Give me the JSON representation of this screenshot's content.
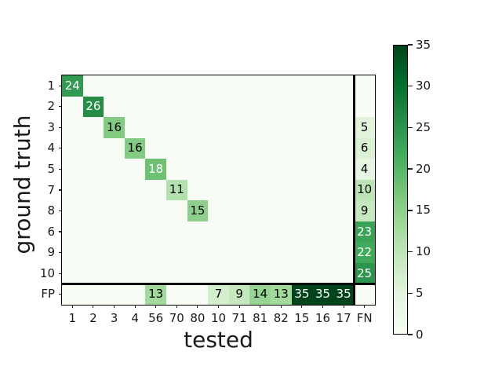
{
  "chart_data": {
    "type": "heatmap",
    "title": "",
    "xlabel": "tested",
    "ylabel": "ground truth",
    "x_categories": [
      "1",
      "2",
      "3",
      "4",
      "56",
      "70",
      "80",
      "10",
      "71",
      "81",
      "82",
      "15",
      "16",
      "17",
      "FN"
    ],
    "y_categories": [
      "1",
      "2",
      "3",
      "4",
      "5",
      "7",
      "8",
      "6",
      "9",
      "10",
      "FP"
    ],
    "matrix": [
      [
        24,
        0,
        0,
        0,
        0,
        0,
        0,
        0,
        0,
        0,
        0,
        0,
        0,
        0,
        0
      ],
      [
        0,
        26,
        0,
        0,
        0,
        0,
        0,
        0,
        0,
        0,
        0,
        0,
        0,
        0,
        0
      ],
      [
        0,
        0,
        16,
        0,
        0,
        0,
        0,
        0,
        0,
        0,
        0,
        0,
        0,
        0,
        5
      ],
      [
        0,
        0,
        0,
        16,
        0,
        0,
        0,
        0,
        0,
        0,
        0,
        0,
        0,
        0,
        6
      ],
      [
        0,
        0,
        0,
        0,
        18,
        0,
        0,
        0,
        0,
        0,
        0,
        0,
        0,
        0,
        4
      ],
      [
        0,
        0,
        0,
        0,
        0,
        11,
        0,
        0,
        0,
        0,
        0,
        0,
        0,
        0,
        10
      ],
      [
        0,
        0,
        0,
        0,
        0,
        0,
        15,
        0,
        0,
        0,
        0,
        0,
        0,
        0,
        9
      ],
      [
        0,
        0,
        0,
        0,
        0,
        0,
        0,
        0,
        0,
        0,
        0,
        0,
        0,
        0,
        23
      ],
      [
        0,
        0,
        0,
        0,
        0,
        0,
        0,
        0,
        0,
        0,
        0,
        0,
        0,
        0,
        22
      ],
      [
        0,
        0,
        0,
        0,
        0,
        0,
        0,
        0,
        0,
        0,
        0,
        0,
        0,
        0,
        25
      ],
      [
        0,
        0,
        0,
        0,
        13,
        0,
        0,
        7,
        9,
        14,
        13,
        35,
        35,
        35,
        0
      ]
    ],
    "vmin": 0,
    "vmax": 35,
    "annotate_zero_cells": false,
    "text_color_threshold": 17.5,
    "annotation_color_low": "#000000",
    "annotation_color_high": "#ffffff",
    "colormap": "Greens",
    "colormap_stops": [
      [
        0.0,
        "#f7fcf5"
      ],
      [
        0.125,
        "#e5f5e0"
      ],
      [
        0.25,
        "#c7e9c0"
      ],
      [
        0.375,
        "#a1d99b"
      ],
      [
        0.5,
        "#74c476"
      ],
      [
        0.625,
        "#41ab5d"
      ],
      [
        0.75,
        "#238b45"
      ],
      [
        0.875,
        "#006d2c"
      ],
      [
        1.0,
        "#00441b"
      ]
    ],
    "colorbar": {
      "position": "right",
      "ticks": [
        0,
        5,
        10,
        15,
        20,
        25,
        30,
        35
      ]
    },
    "separators": {
      "vline_before_col_index": 14,
      "hline_before_row_index": 10
    },
    "grid": false,
    "legend": "none"
  },
  "colors": {
    "background": "#ffffff",
    "frame": "#000000",
    "tick_text": "#1a1a1a"
  }
}
